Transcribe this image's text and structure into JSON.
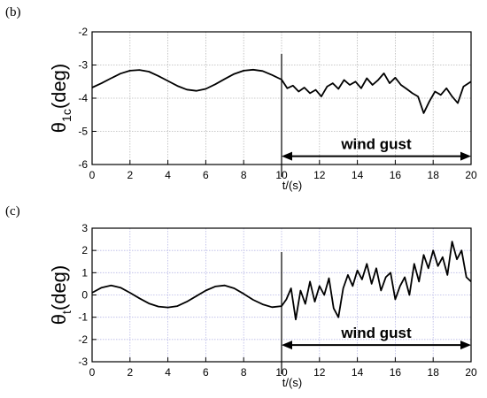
{
  "chart_data": [
    {
      "type": "line",
      "panel_label": "(b)",
      "ylabel_main": "θ",
      "ylabel_sub": "1c",
      "ylabel_unit": "(deg)",
      "xlabel": "t/(s)",
      "xlim": [
        0,
        20
      ],
      "ylim": [
        -6,
        -2
      ],
      "xticks": [
        0,
        2,
        4,
        6,
        8,
        10,
        12,
        14,
        16,
        18,
        20
      ],
      "yticks": [
        -6,
        -5,
        -4,
        -3,
        -2
      ],
      "grid": true,
      "grid_color": "#b8b8b8",
      "event_x": 10,
      "annotation": {
        "text": "wind gust",
        "arrow_from": 10,
        "arrow_to": 20,
        "arrow_y": -5.75
      },
      "series": [
        {
          "x": [
            0,
            0.5,
            1,
            1.5,
            2,
            2.5,
            3,
            3.5,
            4,
            4.5,
            5,
            5.5,
            6,
            6.5,
            7,
            7.5,
            8,
            8.5,
            9,
            9.5,
            10,
            10.3,
            10.6,
            10.9,
            11.2,
            11.5,
            11.8,
            12.1,
            12.4,
            12.7,
            13,
            13.3,
            13.6,
            13.9,
            14.2,
            14.5,
            14.8,
            15.1,
            15.4,
            15.7,
            16,
            16.3,
            16.6,
            16.9,
            17.2,
            17.5,
            17.8,
            18.1,
            18.4,
            18.7,
            19,
            19.3,
            19.6,
            20
          ],
          "y": [
            -3.68,
            -3.55,
            -3.4,
            -3.26,
            -3.17,
            -3.15,
            -3.2,
            -3.33,
            -3.48,
            -3.63,
            -3.74,
            -3.78,
            -3.72,
            -3.58,
            -3.42,
            -3.27,
            -3.17,
            -3.14,
            -3.18,
            -3.3,
            -3.44,
            -3.7,
            -3.62,
            -3.8,
            -3.68,
            -3.85,
            -3.75,
            -3.95,
            -3.65,
            -3.55,
            -3.72,
            -3.45,
            -3.6,
            -3.5,
            -3.7,
            -3.4,
            -3.6,
            -3.45,
            -3.25,
            -3.55,
            -3.38,
            -3.6,
            -3.72,
            -3.85,
            -3.95,
            -4.45,
            -4.1,
            -3.8,
            -3.9,
            -3.7,
            -3.95,
            -4.15,
            -3.65,
            -3.5
          ]
        }
      ]
    },
    {
      "type": "line",
      "panel_label": "(c)",
      "ylabel_main": "θ",
      "ylabel_sub": "t",
      "ylabel_unit": "(deg)",
      "xlabel": "t/(s)",
      "xlim": [
        0,
        20
      ],
      "ylim": [
        -3,
        3
      ],
      "xticks": [
        0,
        2,
        4,
        6,
        8,
        10,
        12,
        14,
        16,
        18,
        20
      ],
      "yticks": [
        -3,
        -2,
        -1,
        0,
        1,
        2,
        3
      ],
      "grid": true,
      "grid_color": "#b8b8e6",
      "event_x": 10,
      "annotation": {
        "text": "wind gust",
        "arrow_from": 10,
        "arrow_to": 20,
        "arrow_y": -2.25
      },
      "series": [
        {
          "x": [
            0,
            0.5,
            1,
            1.5,
            2,
            2.5,
            3,
            3.5,
            4,
            4.5,
            5,
            5.5,
            6,
            6.5,
            7,
            7.5,
            8,
            8.5,
            9,
            9.5,
            10,
            10.25,
            10.5,
            10.75,
            11,
            11.25,
            11.5,
            11.75,
            12,
            12.25,
            12.5,
            12.75,
            13,
            13.25,
            13.5,
            13.75,
            14,
            14.25,
            14.5,
            14.75,
            15,
            15.25,
            15.5,
            15.75,
            16,
            16.25,
            16.5,
            16.75,
            17,
            17.25,
            17.5,
            17.75,
            18,
            18.25,
            18.5,
            18.75,
            19,
            19.25,
            19.5,
            19.75,
            20
          ],
          "y": [
            0.1,
            0.33,
            0.43,
            0.33,
            0.1,
            -0.15,
            -0.38,
            -0.52,
            -0.56,
            -0.5,
            -0.3,
            -0.05,
            0.2,
            0.38,
            0.43,
            0.3,
            0.05,
            -0.22,
            -0.42,
            -0.55,
            -0.5,
            -0.2,
            0.3,
            -1.1,
            0.2,
            -0.4,
            0.6,
            -0.3,
            0.4,
            0.0,
            0.75,
            -0.6,
            -1.0,
            0.3,
            0.9,
            0.4,
            1.1,
            0.7,
            1.4,
            0.5,
            1.2,
            0.2,
            0.8,
            1.0,
            -0.2,
            0.4,
            0.8,
            0.0,
            1.4,
            0.6,
            1.8,
            1.2,
            2.0,
            1.3,
            1.7,
            0.9,
            2.4,
            1.6,
            2.0,
            0.8,
            0.6
          ]
        }
      ]
    }
  ]
}
